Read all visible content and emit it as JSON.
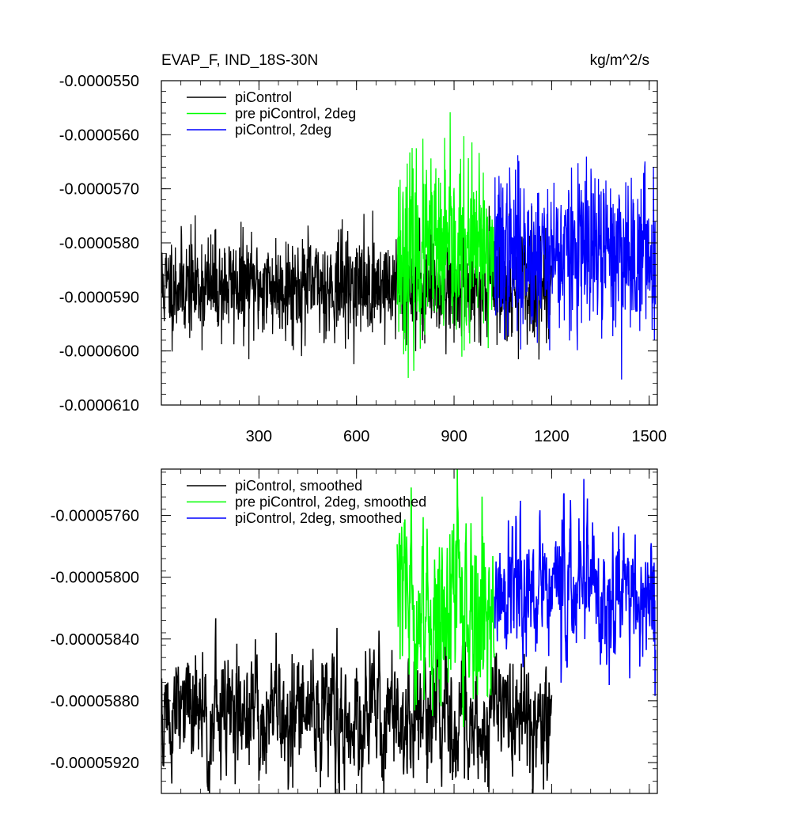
{
  "chart_data": [
    {
      "type": "line",
      "title": "EVAP_F, IND_18S-30N",
      "units": "kg/m^2/s",
      "xlim": [
        0,
        1525
      ],
      "ylim": [
        -6.1e-05,
        -5.5e-05
      ],
      "xticks": [
        300,
        600,
        900,
        1200,
        1500
      ],
      "xtick_labels": [
        "300",
        "600",
        "900",
        "1200",
        "1500"
      ],
      "yticks": [
        -5.5e-05,
        -5.6e-05,
        -5.7e-05,
        -5.8e-05,
        -5.9e-05,
        -6e-05,
        -6.1e-05
      ],
      "ytick_labels": [
        "-0.0000550",
        "-0.0000560",
        "-0.0000570",
        "-0.0000580",
        "-0.0000590",
        "-0.0000600",
        "-0.0000610"
      ],
      "grid": false,
      "legend_position": "top-left",
      "series": [
        {
          "name": "piControl",
          "color": "#000000",
          "x_start": 1,
          "x_end": 1200,
          "mean": -5.88e-05,
          "noise_sd": 4.8e-07,
          "seed": 11
        },
        {
          "name": "pre piControl, 2deg",
          "color": "#00ff00",
          "x_start": 725,
          "x_end": 1024,
          "mean": -5.82e-05,
          "noise_sd": 8.5e-07,
          "seed": 23
        },
        {
          "name": "piControl, 2deg",
          "color": "#0000ff",
          "x_start": 1025,
          "x_end": 1519,
          "mean": -5.82e-05,
          "noise_sd": 7.5e-07,
          "seed": 37
        }
      ]
    },
    {
      "type": "line",
      "title": "",
      "xlim": [
        0,
        1525
      ],
      "ylim": [
        -5.94e-05,
        -5.73e-05
      ],
      "xticks": [
        300,
        600,
        900,
        1200,
        1500
      ],
      "xtick_labels": [],
      "yticks": [
        -5.76e-05,
        -5.8e-05,
        -5.84e-05,
        -5.88e-05,
        -5.92e-05
      ],
      "ytick_labels": [
        "-0.00005760",
        "-0.00005800",
        "-0.00005840",
        "-0.00005880",
        "-0.00005920"
      ],
      "grid": false,
      "legend_position": "top-left",
      "series": [
        {
          "name": "piControl, smoothed",
          "color": "#000000",
          "x_start": 1,
          "x_end": 1200,
          "mean": -5.89e-05,
          "noise_sd": 2e-07,
          "seed": 51
        },
        {
          "name": "pre piControl, 2deg, smoothed",
          "color": "#00ff00",
          "x_start": 725,
          "x_end": 1024,
          "mean": -5.82e-05,
          "noise_sd": 2.8e-07,
          "seed": 63
        },
        {
          "name": "piControl, 2deg, smoothed",
          "color": "#0000ff",
          "x_start": 1025,
          "x_end": 1519,
          "mean": -5.81e-05,
          "noise_sd": 2.2e-07,
          "seed": 77
        }
      ]
    }
  ]
}
